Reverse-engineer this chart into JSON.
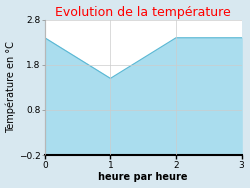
{
  "title": "Evolution de la température",
  "title_color": "#ff0000",
  "xlabel": "heure par heure",
  "ylabel": "Température en °C",
  "x": [
    0,
    1,
    2,
    3
  ],
  "y": [
    2.4,
    1.5,
    2.4,
    2.4
  ],
  "ylim": [
    -0.2,
    2.8
  ],
  "xlim": [
    0,
    3
  ],
  "yticks": [
    -0.2,
    0.8,
    1.8,
    2.8
  ],
  "xticks": [
    0,
    1,
    2,
    3
  ],
  "line_color": "#5bb8d4",
  "fill_color": "#aaddee",
  "bg_color": "#d8e8f0",
  "plot_bg_color": "#ffffff",
  "grid_color": "#cccccc",
  "title_fontsize": 9,
  "label_fontsize": 7,
  "tick_fontsize": 6.5
}
